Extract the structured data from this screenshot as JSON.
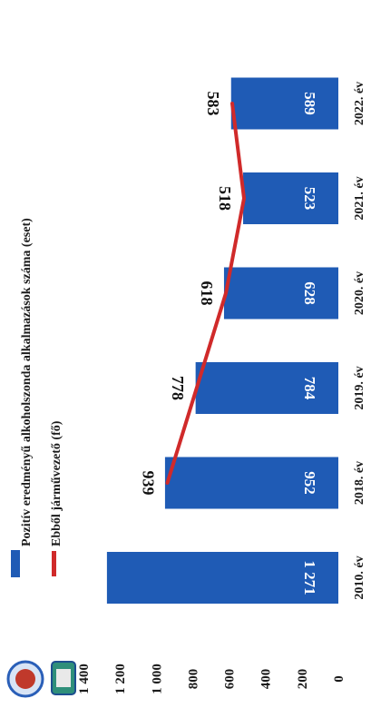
{
  "chart_data": {
    "type": "bar",
    "categories": [
      "2010. év",
      "2018. év",
      "2019. év",
      "2020. év",
      "2021. év",
      "2022. év"
    ],
    "series": [
      {
        "name": "Pozitív eredményű alkoholszonda alkalmazások száma (eset)",
        "type": "bar",
        "values": [
          1271,
          952,
          784,
          628,
          523,
          589
        ],
        "labels": [
          "1 271",
          "952",
          "784",
          "628",
          "523",
          "589"
        ],
        "color": "#1f5bb5"
      },
      {
        "name": "Ebből járművezető (fő)",
        "type": "line",
        "values": [
          null,
          939,
          778,
          618,
          518,
          583
        ],
        "labels": [
          "",
          "939",
          "778",
          "618",
          "518",
          "583"
        ],
        "color": "#d02a2a"
      }
    ],
    "y_ticks": [
      "0",
      "200",
      "400",
      "600",
      "800",
      "1 000",
      "1 200",
      "1 400"
    ],
    "ylim": [
      0,
      1400
    ],
    "grid": false,
    "legend_position": "top",
    "orientation": "rotated-90"
  }
}
